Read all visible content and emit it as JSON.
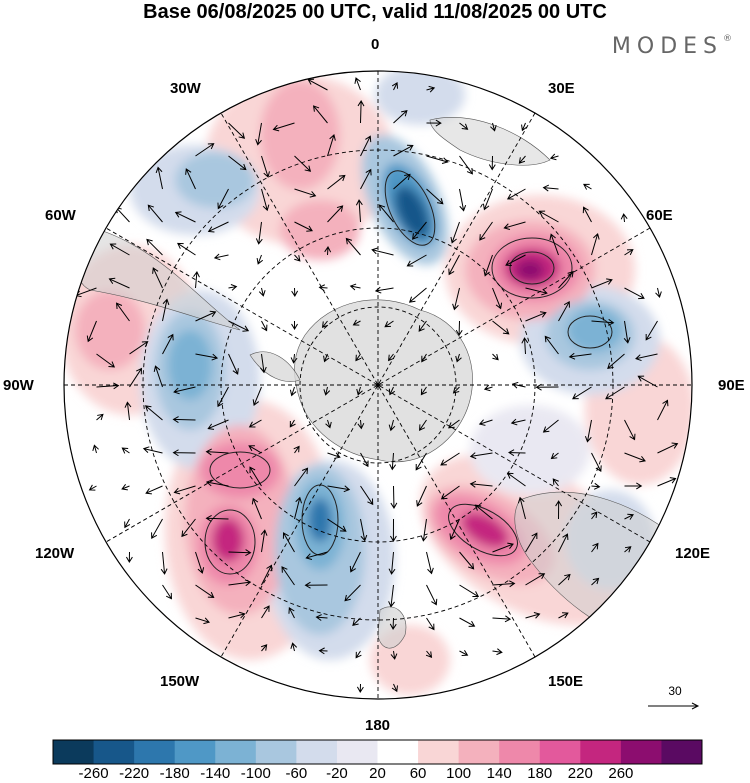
{
  "header": {
    "title": "Base 06/08/2025 00 UTC, valid 11/08/2025 00 UTC",
    "brand": "MODES",
    "brand_mark": "®"
  },
  "map": {
    "projection": "south-polar-stereographic",
    "longitude_labels": {
      "top": "0",
      "top_right": "30E",
      "right_upper": "60E",
      "right": "90E",
      "right_lower": "120E",
      "bottom_right": "150E",
      "bottom": "180",
      "bottom_left": "150W",
      "left_lower": "120W",
      "left": "90W",
      "left_upper": "60W",
      "top_left": "30W"
    },
    "vector_reference": "30"
  },
  "colorbar": {
    "ticks": [
      "-260",
      "-220",
      "-180",
      "-140",
      "-100",
      "-60",
      "-20",
      "20",
      "60",
      "100",
      "140",
      "180",
      "220",
      "260"
    ],
    "colors": [
      "#0b3a5c",
      "#17578a",
      "#2d77ad",
      "#4f98c6",
      "#7cb2d4",
      "#a9c7df",
      "#d3dcec",
      "#e9e8f2",
      "#ffffff",
      "#f9d6d6",
      "#f4b1bd",
      "#ee88aa",
      "#e3599c",
      "#c4267f",
      "#8c0d6f",
      "#5a0a62"
    ]
  }
}
